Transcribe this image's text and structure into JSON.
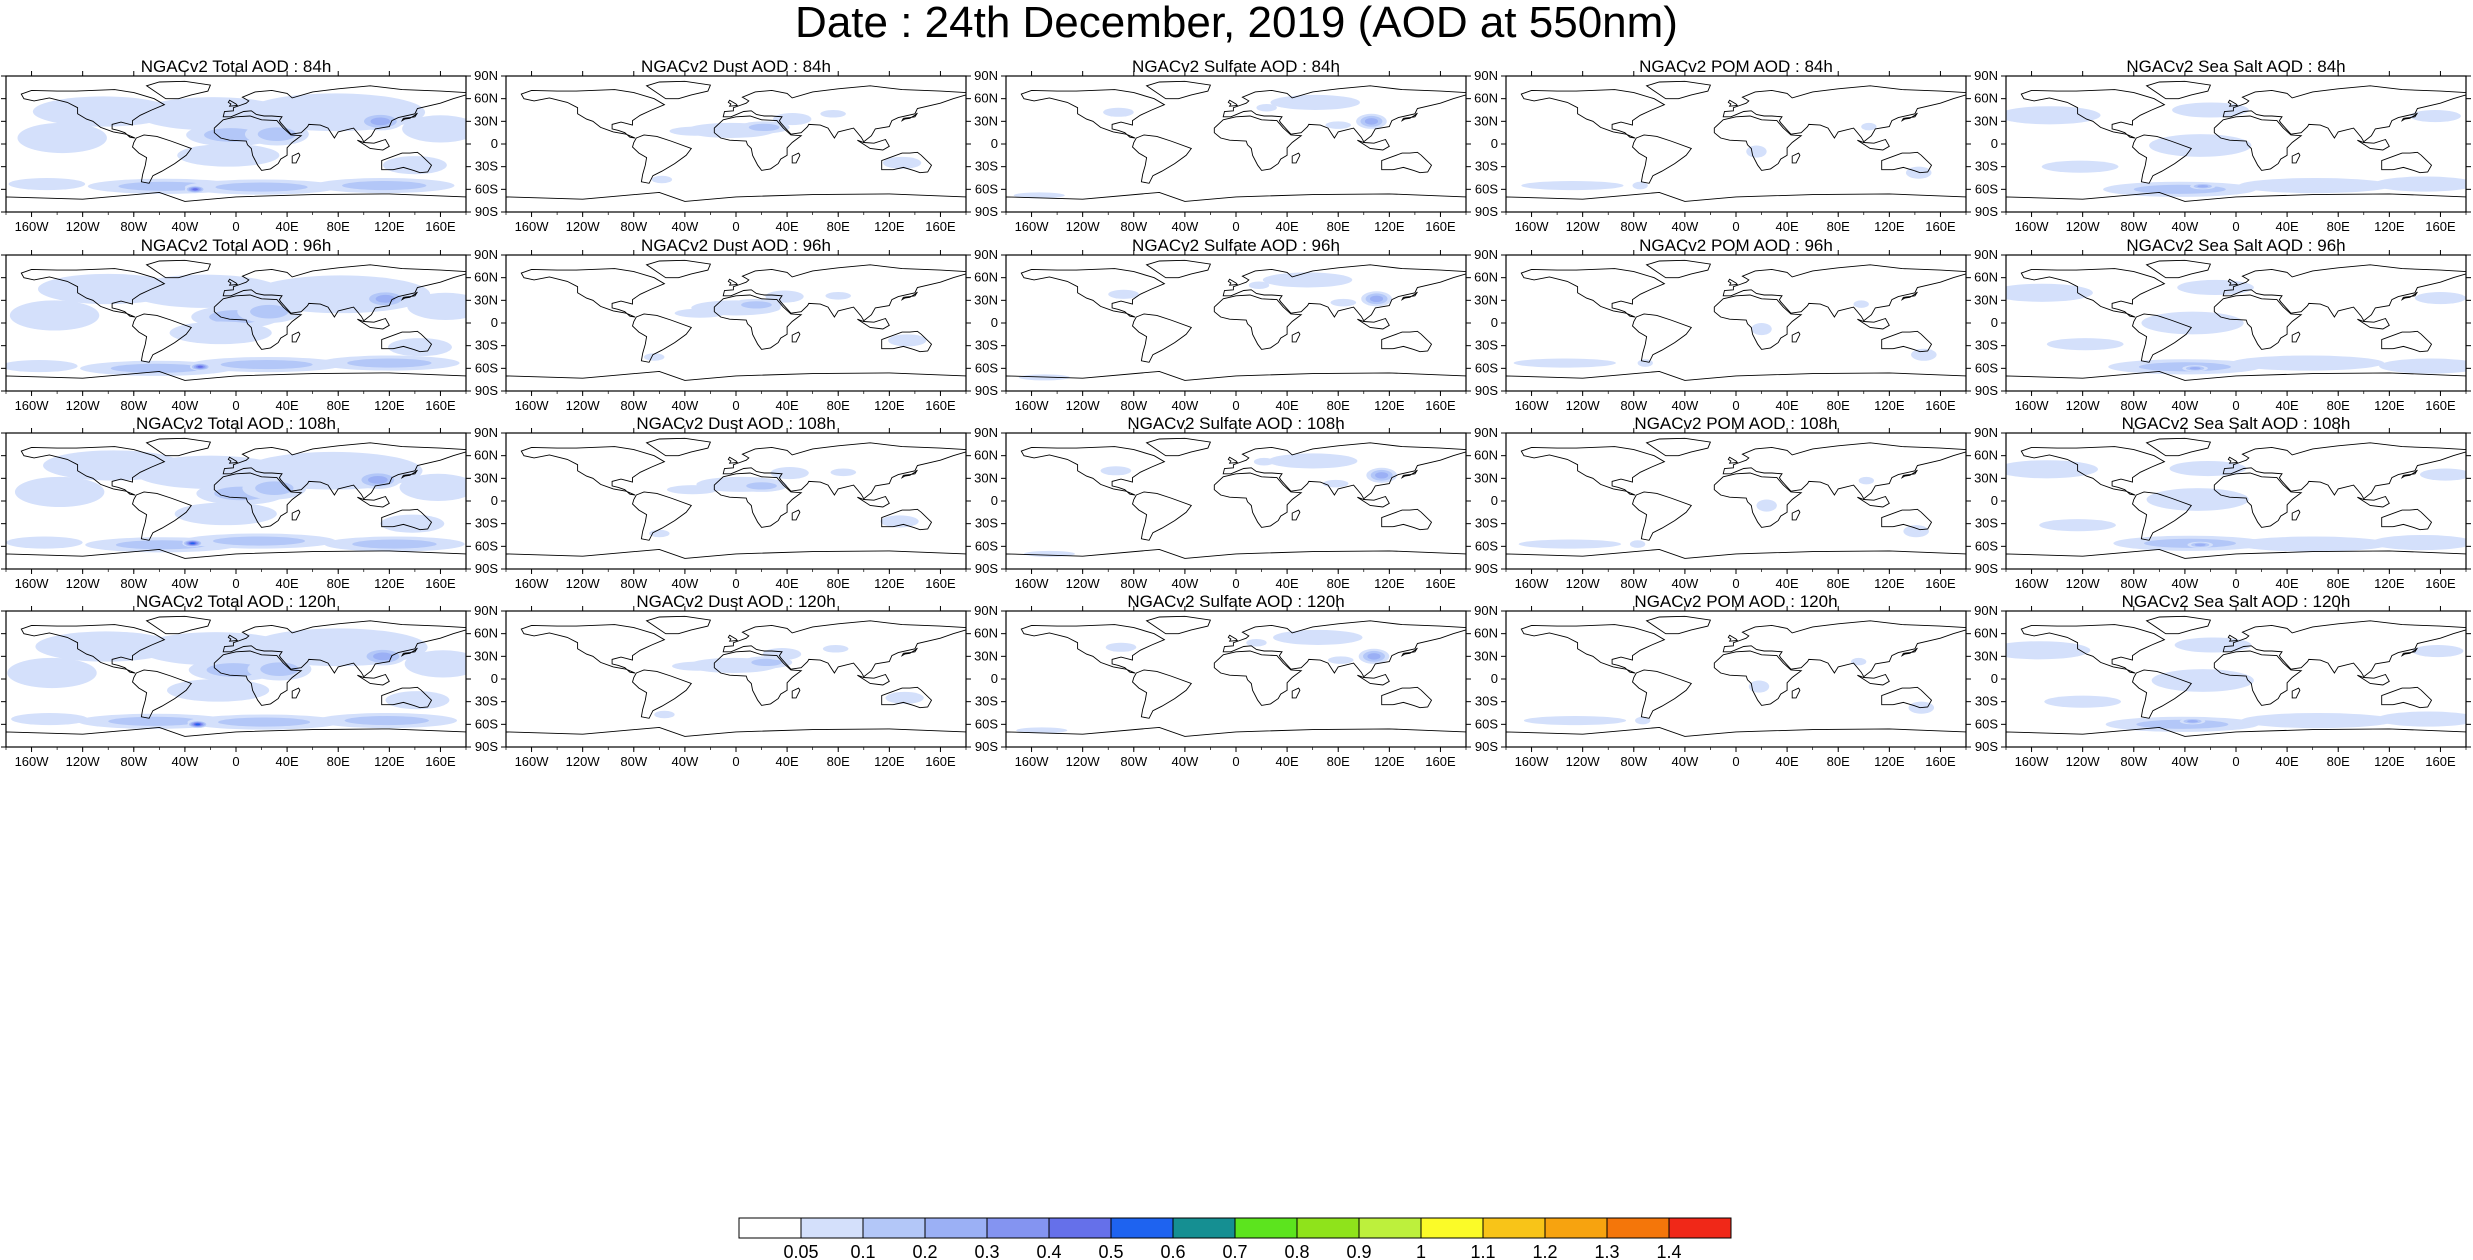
{
  "title": "Date : 24th December, 2019 (AOD at 550nm)",
  "chart_data": {
    "type": "heatmap",
    "variable_columns": [
      "NGACv2 Total AOD",
      "NGACv2 Dust AOD",
      "NGACv2 Sulfate AOD",
      "NGACv2 POM AOD",
      "NGACv2 Sea Salt AOD"
    ],
    "forecast_hours": [
      "84h",
      "96h",
      "108h",
      "120h"
    ],
    "panels": [
      [
        "NGACv2 Total AOD : 84h",
        "NGACv2 Dust AOD : 84h",
        "NGACv2 Sulfate AOD : 84h",
        "NGACv2 POM AOD : 84h",
        "NGACv2 Sea Salt AOD : 84h"
      ],
      [
        "NGACv2 Total AOD : 96h",
        "NGACv2 Dust AOD : 96h",
        "NGACv2 Sulfate AOD : 96h",
        "NGACv2 POM AOD : 96h",
        "NGACv2 Sea Salt AOD : 96h"
      ],
      [
        "NGACv2 Total AOD : 108h",
        "NGACv2 Dust AOD : 108h",
        "NGACv2 Sulfate AOD : 108h",
        "NGACv2 POM AOD : 108h",
        "NGACv2 Sea Salt AOD : 108h"
      ],
      [
        "NGACv2 Total AOD : 120h",
        "NGACv2 Dust AOD : 120h",
        "NGACv2 Sulfate AOD : 120h",
        "NGACv2 POM AOD : 120h",
        "NGACv2 Sea Salt  AOD : 120h"
      ]
    ],
    "lat_ticks": [
      "90N",
      "60N",
      "30N",
      "0",
      "30S",
      "60S",
      "90S"
    ],
    "lat_values": [
      90,
      60,
      30,
      0,
      -30,
      -60,
      -90
    ],
    "lon_ticks": [
      "160W",
      "120W",
      "80W",
      "40W",
      "0",
      "40E",
      "80E",
      "120E",
      "160E"
    ],
    "lon_values": [
      -160,
      -120,
      -80,
      -40,
      0,
      40,
      80,
      120,
      160
    ],
    "xlim": [
      -180,
      180
    ],
    "ylim": [
      -90,
      90
    ],
    "colorbar": {
      "boundaries": [
        "0.05",
        "0.1",
        "0.2",
        "0.3",
        "0.4",
        "0.5",
        "0.6",
        "0.7",
        "0.8",
        "0.9",
        "1",
        "1.1",
        "1.2",
        "1.3",
        "1.4"
      ],
      "colors": [
        "#ffffff",
        "#d4e0fb",
        "#b3c7f8",
        "#9bb0f5",
        "#8494f1",
        "#6570ea",
        "#1e63f0",
        "#158f92",
        "#5ce41e",
        "#8fe31b",
        "#bdf03c",
        "#fbfb28",
        "#f8c418",
        "#f7a30f",
        "#f4760a",
        "#f02818"
      ]
    }
  }
}
